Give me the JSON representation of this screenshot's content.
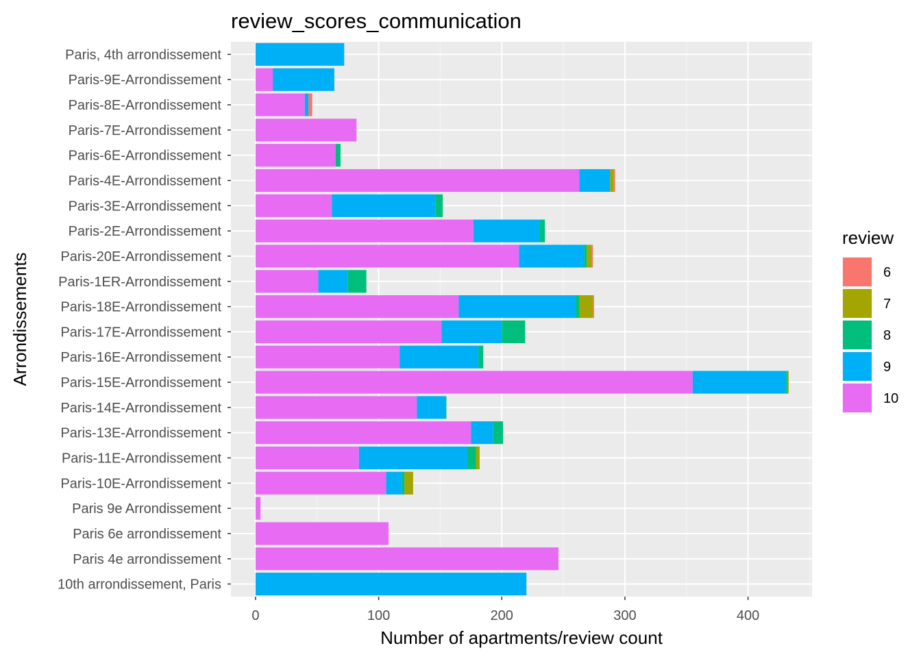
{
  "chart_data": {
    "type": "bar",
    "orientation": "horizontal",
    "stacked": true,
    "title": "review_scores_communication",
    "xlabel": "Number of apartments/review count",
    "ylabel": "Arrondissements",
    "xlim": [
      -20,
      452
    ],
    "x_ticks": [
      0,
      100,
      200,
      300,
      400
    ],
    "grid": true,
    "legend": {
      "title": "review",
      "position": "right"
    },
    "categories": [
      "Paris, 4th arrondissement",
      "Paris-9E-Arrondissement",
      "Paris-8E-Arrondissement",
      "Paris-7E-Arrondissement",
      "Paris-6E-Arrondissement",
      "Paris-4E-Arrondissement",
      "Paris-3E-Arrondissement",
      "Paris-2E-Arrondissement",
      "Paris-20E-Arrondissement",
      "Paris-1ER-Arrondissement",
      "Paris-18E-Arrondissement",
      "Paris-17E-Arrondissement",
      "Paris-16E-Arrondissement",
      "Paris-15E-Arrondissement",
      "Paris-14E-Arrondissement",
      "Paris-13E-Arrondissement",
      "Paris-11E-Arrondissement",
      "Paris-10E-Arrondissement",
      "Paris 9e Arrondissement",
      "Paris 6e arrondissement",
      "Paris 4e arrondissement",
      "10th arrondissement, Paris"
    ],
    "series": [
      {
        "name": "10",
        "color": "#e76bf3",
        "values": [
          0,
          14,
          40,
          82,
          65,
          263,
          62,
          177,
          214,
          51,
          165,
          151,
          117,
          355,
          131,
          175,
          84,
          106,
          4,
          108,
          246,
          0
        ]
      },
      {
        "name": "9",
        "color": "#00b0f6",
        "values": [
          72,
          50,
          3,
          0,
          0,
          25,
          84,
          54,
          53,
          24,
          95,
          49,
          64,
          76,
          23,
          18,
          88,
          13,
          0,
          0,
          0,
          220
        ]
      },
      {
        "name": "8",
        "color": "#00bf7d",
        "values": [
          0,
          0,
          0,
          0,
          4,
          0,
          6,
          4,
          2,
          15,
          3,
          19,
          4,
          1,
          1,
          8,
          7,
          2,
          0,
          0,
          0,
          0
        ]
      },
      {
        "name": "7",
        "color": "#a3a500",
        "values": [
          0,
          0,
          0,
          0,
          0,
          3,
          0,
          0,
          4,
          0,
          11,
          0,
          0,
          1,
          0,
          0,
          3,
          7,
          0,
          0,
          0,
          0
        ]
      },
      {
        "name": "6",
        "color": "#f8766d",
        "values": [
          0,
          0,
          3,
          0,
          0,
          1,
          0,
          0,
          1,
          0,
          1,
          0,
          0,
          0,
          0,
          0,
          0,
          0,
          0,
          0,
          0,
          0
        ]
      }
    ],
    "legend_order": [
      "6",
      "7",
      "8",
      "9",
      "10"
    ]
  }
}
